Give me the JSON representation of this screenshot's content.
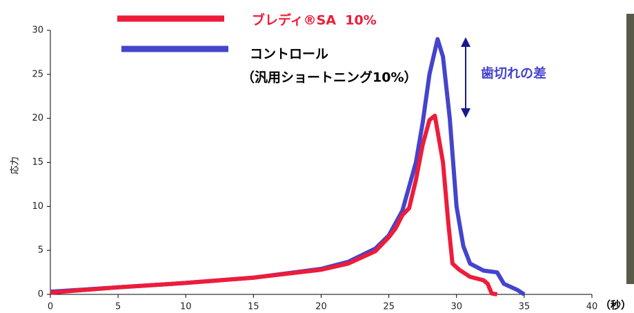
{
  "chart_data": {
    "type": "line",
    "ylabel": "応力",
    "xlabel": "（秒）",
    "xlim": [
      0,
      40
    ],
    "xticks": [
      0,
      5,
      10,
      15,
      20,
      25,
      30,
      35,
      40
    ],
    "ylim": [
      0,
      30
    ],
    "yticks": [
      0,
      5,
      10,
      15,
      20,
      25,
      30
    ],
    "annotation": "歯切れの差",
    "series": [
      {
        "name": "ブレディ®SA  10%",
        "color": "#ee1c3a",
        "x": [
          0,
          5,
          10,
          15,
          20,
          22,
          24,
          25,
          25.5,
          26,
          26.5,
          27,
          27.5,
          28,
          28.4,
          29,
          29.4,
          29.7,
          30.2,
          31,
          32,
          32.3,
          32.6,
          33
        ],
        "values": [
          0.2,
          0.8,
          1.3,
          1.9,
          2.8,
          3.5,
          4.9,
          6.5,
          7.5,
          9.0,
          9.8,
          13,
          17,
          19.8,
          20.3,
          15,
          8,
          3.5,
          2.8,
          2.0,
          1.6,
          1.2,
          0.1,
          0
        ]
      },
      {
        "name": "コントロール",
        "note": "（汎用ショートニング10%）",
        "color": "#4444cc",
        "x": [
          0,
          5,
          10,
          15,
          20,
          22,
          24,
          25,
          26,
          27,
          27.5,
          28,
          28.6,
          29,
          29.5,
          30,
          30.5,
          31,
          32,
          33,
          33.5,
          34.5,
          35
        ],
        "values": [
          0.3,
          0.8,
          1.3,
          1.9,
          2.9,
          3.7,
          5.2,
          6.7,
          9.5,
          15,
          19.5,
          25,
          29,
          27,
          20,
          10,
          5.5,
          3.5,
          2.7,
          2.5,
          1.2,
          0.5,
          0
        ]
      }
    ]
  }
}
